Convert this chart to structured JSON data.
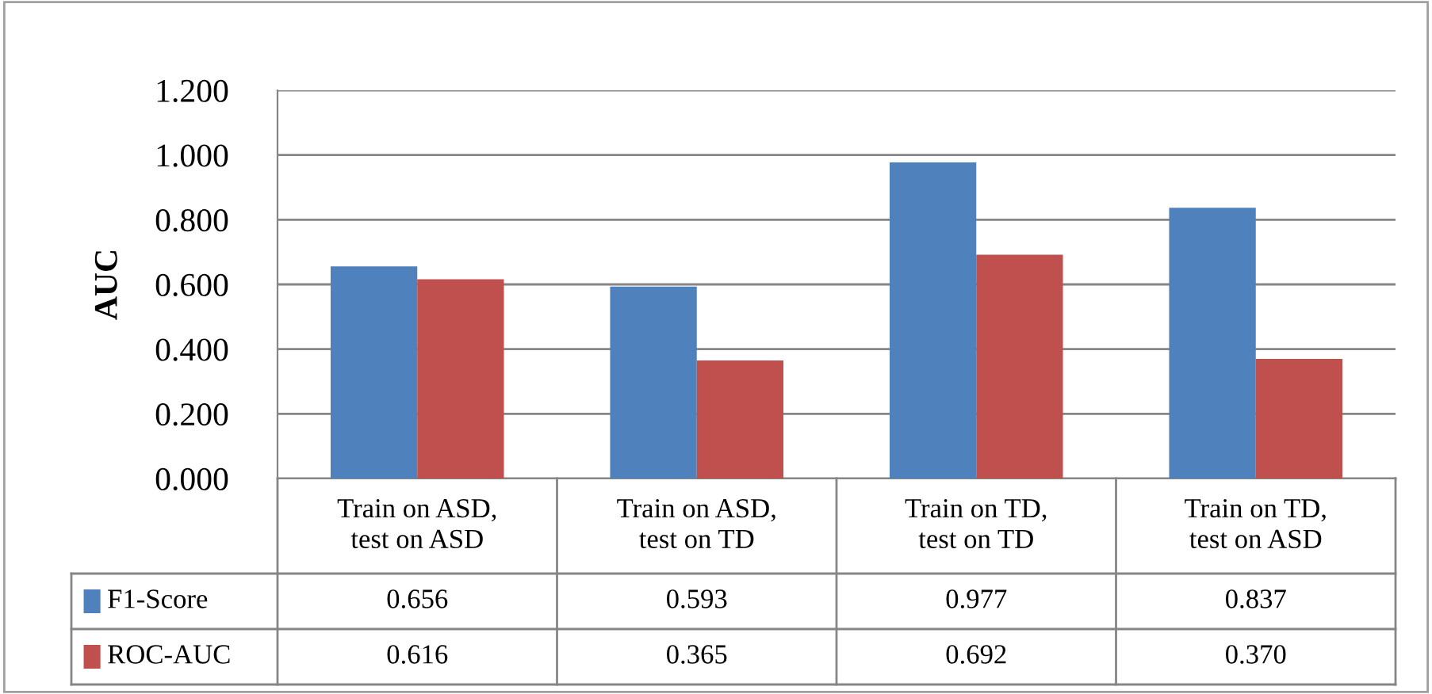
{
  "chart_data": {
    "type": "bar",
    "ylabel": "AUC",
    "categories": [
      "Train on ASD,\ntest on ASD",
      "Train on ASD,\ntest on TD",
      "Train on TD,\ntest on TD",
      "Train on TD,\ntest on ASD"
    ],
    "series": [
      {
        "name": "F1-Score",
        "color": "#4f81bd",
        "values": [
          0.656,
          0.593,
          0.977,
          0.837
        ],
        "value_labels": [
          "0.656",
          "0.593",
          "0.977",
          "0.837"
        ]
      },
      {
        "name": "ROC-AUC",
        "color": "#c0504d",
        "values": [
          0.616,
          0.365,
          0.692,
          0.37
        ],
        "value_labels": [
          "0.616",
          "0.365",
          "0.692",
          "0.370"
        ]
      }
    ],
    "ylim": [
      0,
      1.2
    ],
    "yticks": [
      {
        "value": 0,
        "label": "0.000"
      },
      {
        "value": 0.2,
        "label": "0.200"
      },
      {
        "value": 0.4,
        "label": "0.400"
      },
      {
        "value": 0.6,
        "label": "0.600"
      },
      {
        "value": 0.8,
        "label": "0.800"
      },
      {
        "value": 1.0,
        "label": "1.000"
      },
      {
        "value": 1.2,
        "label": "1.200"
      }
    ],
    "grid": "y",
    "legend": "bottom"
  }
}
